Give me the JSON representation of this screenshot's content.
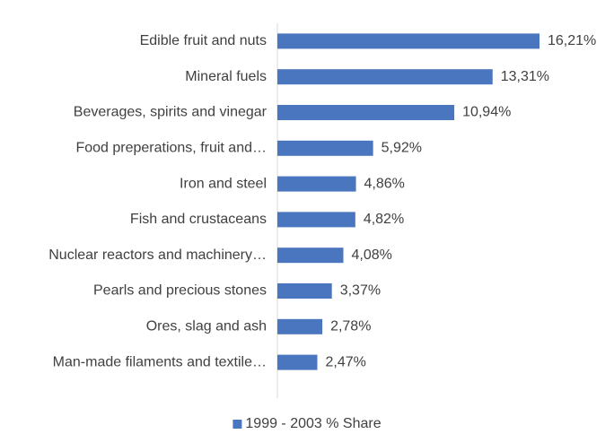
{
  "chart_data": {
    "type": "bar",
    "orientation": "horizontal",
    "categories": [
      "Edible fruit and nuts",
      "Mineral fuels",
      "Beverages, spirits and vinegar",
      "Food preperations, fruit and…",
      "Iron and steel",
      "Fish and crustaceans",
      "Nuclear reactors and machinery…",
      "Pearls and precious stones",
      "Ores, slag and ash",
      "Man-made filaments and textile…"
    ],
    "series": [
      {
        "name": "1999 - 2003 % Share",
        "color": "#4a76c0",
        "values": [
          16.21,
          13.31,
          10.94,
          5.92,
          4.86,
          4.82,
          4.08,
          3.37,
          2.78,
          2.47
        ],
        "value_labels": [
          "16,21%",
          "13,31%",
          "10,94%",
          "5,92%",
          "4,86%",
          "4,82%",
          "4,08%",
          "3,37%",
          "2,78%",
          "2,47%"
        ]
      }
    ],
    "legend": "bottom"
  }
}
